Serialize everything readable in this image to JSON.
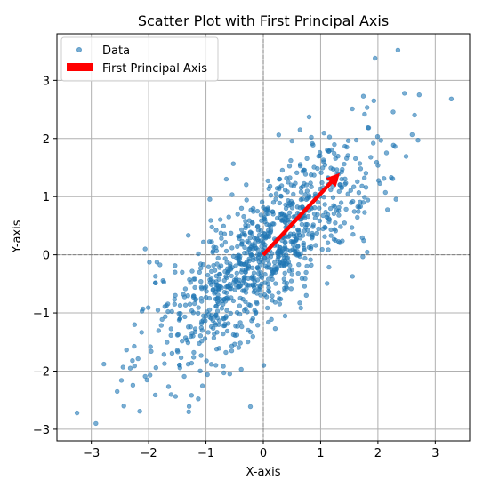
{
  "chart_data": {
    "type": "scatter",
    "title": "Scatter Plot with First Principal Axis",
    "xlabel": "X-axis",
    "ylabel": "Y-axis",
    "xlim": [
      -3.6,
      3.6
    ],
    "ylim": [
      -3.2,
      3.8
    ],
    "xticks": [
      -3,
      -2,
      -1,
      0,
      1,
      2,
      3
    ],
    "yticks": [
      -3,
      -2,
      -1,
      0,
      1,
      2,
      3
    ],
    "xtick_labels": [
      "−3",
      "−2",
      "−1",
      "0",
      "1",
      "2",
      "3"
    ],
    "ytick_labels": [
      "−3",
      "−2",
      "−1",
      "0",
      "1",
      "2",
      "3"
    ],
    "grid": true,
    "zero_lines": true,
    "legend_position": "top-left",
    "series": [
      {
        "name": "Data",
        "kind": "scatter",
        "color": "#1f77b4",
        "point_count": 1000,
        "generator": {
          "mean": [
            0,
            0
          ],
          "sd_x": 1.0,
          "sd_y": 1.0,
          "correlation": 0.8,
          "seed": 7
        },
        "extreme_points": [
          [
            -3.25,
            -2.72
          ],
          [
            -2.92,
            -2.9
          ],
          [
            -2.78,
            -1.88
          ],
          [
            -2.55,
            -2.35
          ],
          [
            2.35,
            3.52
          ],
          [
            3.28,
            2.68
          ],
          [
            1.95,
            3.38
          ],
          [
            2.7,
            1.97
          ],
          [
            -1.3,
            -2.7
          ]
        ]
      },
      {
        "name": "First Principal Axis",
        "kind": "arrow",
        "color": "#ff0000",
        "start": [
          0,
          0
        ],
        "end": [
          1.33,
          1.4
        ]
      }
    ]
  }
}
